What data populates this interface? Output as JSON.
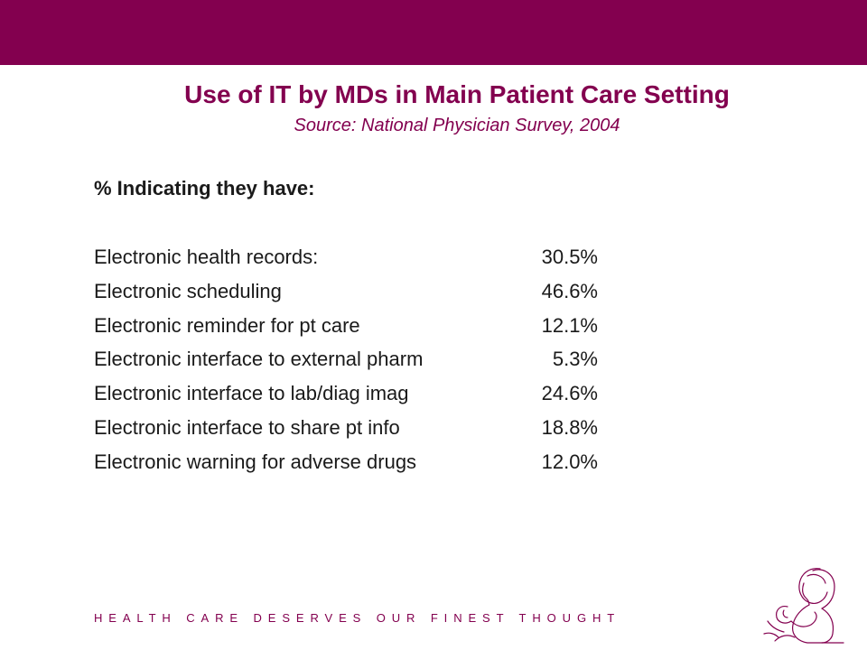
{
  "slide": {
    "title": "Use of IT by MDs in Main Patient Care Setting",
    "subtitle": "Source: National Physician Survey, 2004",
    "intro": "% Indicating they have:",
    "rows": [
      {
        "label": "Electronic health records:",
        "value": "30.5%"
      },
      {
        "label": "Electronic scheduling",
        "value": "46.6%"
      },
      {
        "label": "Electronic reminder for pt care",
        "value": "12.1%"
      },
      {
        "label": "Electronic interface to external pharm",
        "value": "5.3%"
      },
      {
        "label": "Electronic interface to lab/diag imag",
        "value": "24.6%"
      },
      {
        "label": "Electronic interface to share pt info",
        "value": "18.8%"
      },
      {
        "label": "Electronic warning for adverse drugs",
        "value": "12.0%"
      }
    ],
    "tagline": "HEALTH CARE DESERVES OUR FINEST THOUGHT"
  },
  "colors": {
    "brand": "#83004f",
    "text": "#1a1a1a",
    "background": "#ffffff"
  },
  "icons": {
    "logo": "mother-and-child-logo-icon"
  }
}
